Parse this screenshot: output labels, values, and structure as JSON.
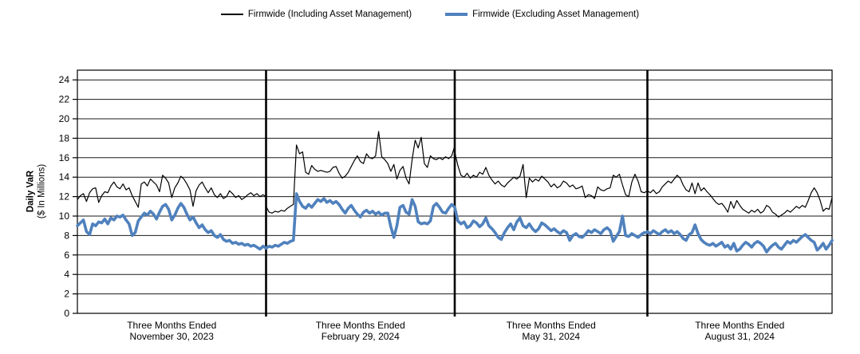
{
  "chart_data": {
    "type": "line",
    "ylabel_line1": "Daily VaR",
    "ylabel_line2": "($ In Millions)",
    "ylim": [
      0,
      25
    ],
    "yticks": [
      0,
      2,
      4,
      6,
      8,
      10,
      12,
      14,
      16,
      18,
      20,
      22,
      24
    ],
    "grid": "horizontal",
    "legend_position": "top-center",
    "legend": [
      {
        "name": "Firmwide (Including Asset Management)",
        "color": "#000000",
        "thickness": 1.2
      },
      {
        "name": "Firmwide (Excluding Asset Management)",
        "color": "#4f81bd",
        "thickness": 3.6
      }
    ],
    "quarters": [
      {
        "label_line1": "Three Months Ended",
        "label_line2": "November 30, 2023",
        "including": [
          11.7,
          12.1,
          12.3,
          11.5,
          12.4,
          12.8,
          12.9,
          11.4,
          12.1,
          12.5,
          12.4,
          13.1,
          13.5,
          13.0,
          12.8,
          13.3,
          12.7,
          12.9,
          12.1,
          11.5,
          10.9,
          13.3,
          13.5,
          13.1,
          13.8,
          13.5,
          13.2,
          12.5,
          14.2,
          13.9,
          13.4,
          11.9,
          12.9,
          13.4,
          14.1,
          13.8,
          13.3,
          12.7,
          11.0,
          12.6,
          13.2,
          13.5,
          12.9,
          12.4,
          12.9,
          12.2,
          11.9,
          12.3,
          11.8,
          12.0,
          12.6,
          12.3,
          11.9,
          12.1,
          11.7,
          11.9,
          12.2,
          12.4,
          12.1,
          12.3,
          12.0,
          12.2,
          12.0
        ],
        "excluding": [
          9.0,
          9.3,
          9.6,
          8.4,
          8.1,
          9.2,
          9.0,
          9.4,
          9.3,
          9.7,
          9.2,
          9.8,
          9.6,
          10.0,
          9.9,
          10.1,
          9.6,
          9.2,
          8.0,
          8.3,
          9.5,
          9.9,
          10.3,
          10.1,
          10.5,
          10.2,
          9.7,
          10.4,
          11.0,
          11.2,
          10.7,
          9.6,
          10.1,
          10.8,
          11.3,
          10.9,
          10.2,
          9.6,
          9.9,
          9.3,
          8.8,
          9.1,
          8.6,
          8.3,
          8.5,
          8.0,
          7.8,
          8.1,
          7.6,
          7.4,
          7.5,
          7.2,
          7.3,
          7.1,
          7.2,
          7.0,
          7.1,
          6.9,
          7.0,
          6.8,
          6.6,
          6.9,
          6.7
        ]
      },
      {
        "label_line1": "Three Months Ended",
        "label_line2": "February 29, 2024",
        "including": [
          11.0,
          10.4,
          10.3,
          10.5,
          10.4,
          10.6,
          10.5,
          10.8,
          11.0,
          11.2,
          17.3,
          16.4,
          16.6,
          14.5,
          14.3,
          15.2,
          14.8,
          14.6,
          14.7,
          14.6,
          14.5,
          14.6,
          15.0,
          15.1,
          14.4,
          13.9,
          14.1,
          14.5,
          15.1,
          15.7,
          16.2,
          15.6,
          15.4,
          16.4,
          16.0,
          15.9,
          16.2,
          18.7,
          16.1,
          15.8,
          15.4,
          14.6,
          15.3,
          13.8,
          14.7,
          15.1,
          13.9,
          13.3,
          15.8,
          17.8,
          17.0,
          18.1,
          15.4,
          15.0,
          16.2,
          15.9,
          15.8,
          16.0,
          15.8,
          16.1,
          15.9,
          16.2,
          17.2
        ],
        "excluding": [
          6.7,
          6.9,
          6.8,
          7.0,
          6.9,
          7.1,
          7.3,
          7.2,
          7.4,
          7.5,
          12.3,
          11.5,
          11.0,
          10.8,
          11.2,
          10.9,
          11.3,
          11.7,
          11.5,
          11.8,
          11.4,
          11.6,
          11.3,
          11.5,
          11.2,
          10.7,
          10.3,
          10.8,
          11.1,
          10.6,
          10.2,
          9.9,
          10.4,
          10.6,
          10.3,
          10.5,
          10.2,
          10.4,
          10.1,
          10.3,
          10.3,
          8.9,
          7.8,
          9.0,
          10.9,
          11.1,
          10.4,
          10.2,
          11.7,
          11.0,
          9.4,
          9.2,
          9.3,
          9.2,
          9.5,
          11.0,
          11.3,
          10.9,
          10.4,
          10.3,
          10.8,
          11.2,
          10.9
        ]
      },
      {
        "label_line1": "Three Months Ended",
        "label_line2": "May 31, 2024",
        "including": [
          16.6,
          15.2,
          14.2,
          14.0,
          14.4,
          13.9,
          14.2,
          14.0,
          14.5,
          14.3,
          15.0,
          14.2,
          13.7,
          13.3,
          13.6,
          13.2,
          13.0,
          13.4,
          13.7,
          14.0,
          13.8,
          14.1,
          15.3,
          11.9,
          13.9,
          13.5,
          13.8,
          13.6,
          14.1,
          13.8,
          13.5,
          13.0,
          13.3,
          12.9,
          13.1,
          13.6,
          13.4,
          13.0,
          13.2,
          12.8,
          12.9,
          13.1,
          11.9,
          12.2,
          12.1,
          11.8,
          13.0,
          12.7,
          12.6,
          12.8,
          12.9,
          14.2,
          14.0,
          14.3,
          13.2,
          12.2,
          12.0,
          13.5,
          14.3,
          13.6,
          12.5,
          12.4,
          12.6
        ],
        "excluding": [
          10.9,
          9.5,
          9.2,
          9.4,
          8.8,
          9.0,
          9.5,
          9.3,
          8.9,
          9.2,
          9.8,
          9.0,
          8.7,
          8.3,
          7.8,
          7.6,
          8.3,
          8.8,
          9.2,
          8.6,
          9.4,
          9.8,
          9.0,
          8.8,
          9.2,
          8.7,
          8.4,
          8.7,
          9.3,
          9.1,
          8.8,
          8.5,
          8.7,
          8.4,
          8.2,
          8.5,
          8.3,
          7.5,
          8.0,
          8.2,
          7.9,
          7.8,
          8.1,
          8.5,
          8.3,
          8.6,
          8.4,
          8.2,
          8.6,
          8.8,
          8.5,
          7.4,
          7.9,
          8.4,
          10.0,
          8.0,
          7.9,
          8.2,
          8.0,
          7.8,
          8.1,
          8.3,
          8.3
        ]
      },
      {
        "label_line1": "Three Months Ended",
        "label_line2": "August 31, 2024",
        "including": [
          12.6,
          12.4,
          12.7,
          12.3,
          12.5,
          13.0,
          13.3,
          13.6,
          13.4,
          13.8,
          14.2,
          13.9,
          13.2,
          12.7,
          12.5,
          13.4,
          12.3,
          13.4,
          12.6,
          12.9,
          12.5,
          12.2,
          11.8,
          11.4,
          11.2,
          11.3,
          10.9,
          10.4,
          11.5,
          10.8,
          11.6,
          11.1,
          10.7,
          10.5,
          10.3,
          10.6,
          10.4,
          10.7,
          10.3,
          10.5,
          11.1,
          10.9,
          10.4,
          10.2,
          9.9,
          10.1,
          10.3,
          10.6,
          10.4,
          10.7,
          11.0,
          10.8,
          11.1,
          10.9,
          11.6,
          12.4,
          12.9,
          12.4,
          11.6,
          10.5,
          10.8,
          10.7,
          11.9
        ],
        "excluding": [
          8.4,
          8.2,
          8.5,
          8.3,
          8.1,
          8.4,
          8.6,
          8.3,
          8.5,
          8.2,
          8.4,
          8.1,
          7.7,
          7.5,
          8.1,
          8.3,
          9.1,
          8.2,
          7.6,
          7.3,
          7.1,
          7.0,
          7.2,
          6.9,
          7.1,
          7.3,
          6.8,
          7.0,
          6.6,
          7.2,
          6.4,
          6.6,
          7.0,
          7.3,
          7.1,
          6.8,
          7.2,
          7.4,
          7.2,
          6.9,
          6.3,
          6.7,
          7.0,
          7.2,
          6.8,
          6.6,
          7.0,
          7.4,
          7.2,
          7.5,
          7.3,
          7.6,
          7.9,
          8.1,
          7.8,
          7.5,
          7.3,
          6.5,
          6.8,
          7.2,
          6.6,
          7.0,
          7.5
        ]
      }
    ],
    "colors": {
      "axis": "#000000",
      "gridline": "#1a1a1a",
      "divider": "#000000",
      "background": "#ffffff"
    }
  }
}
